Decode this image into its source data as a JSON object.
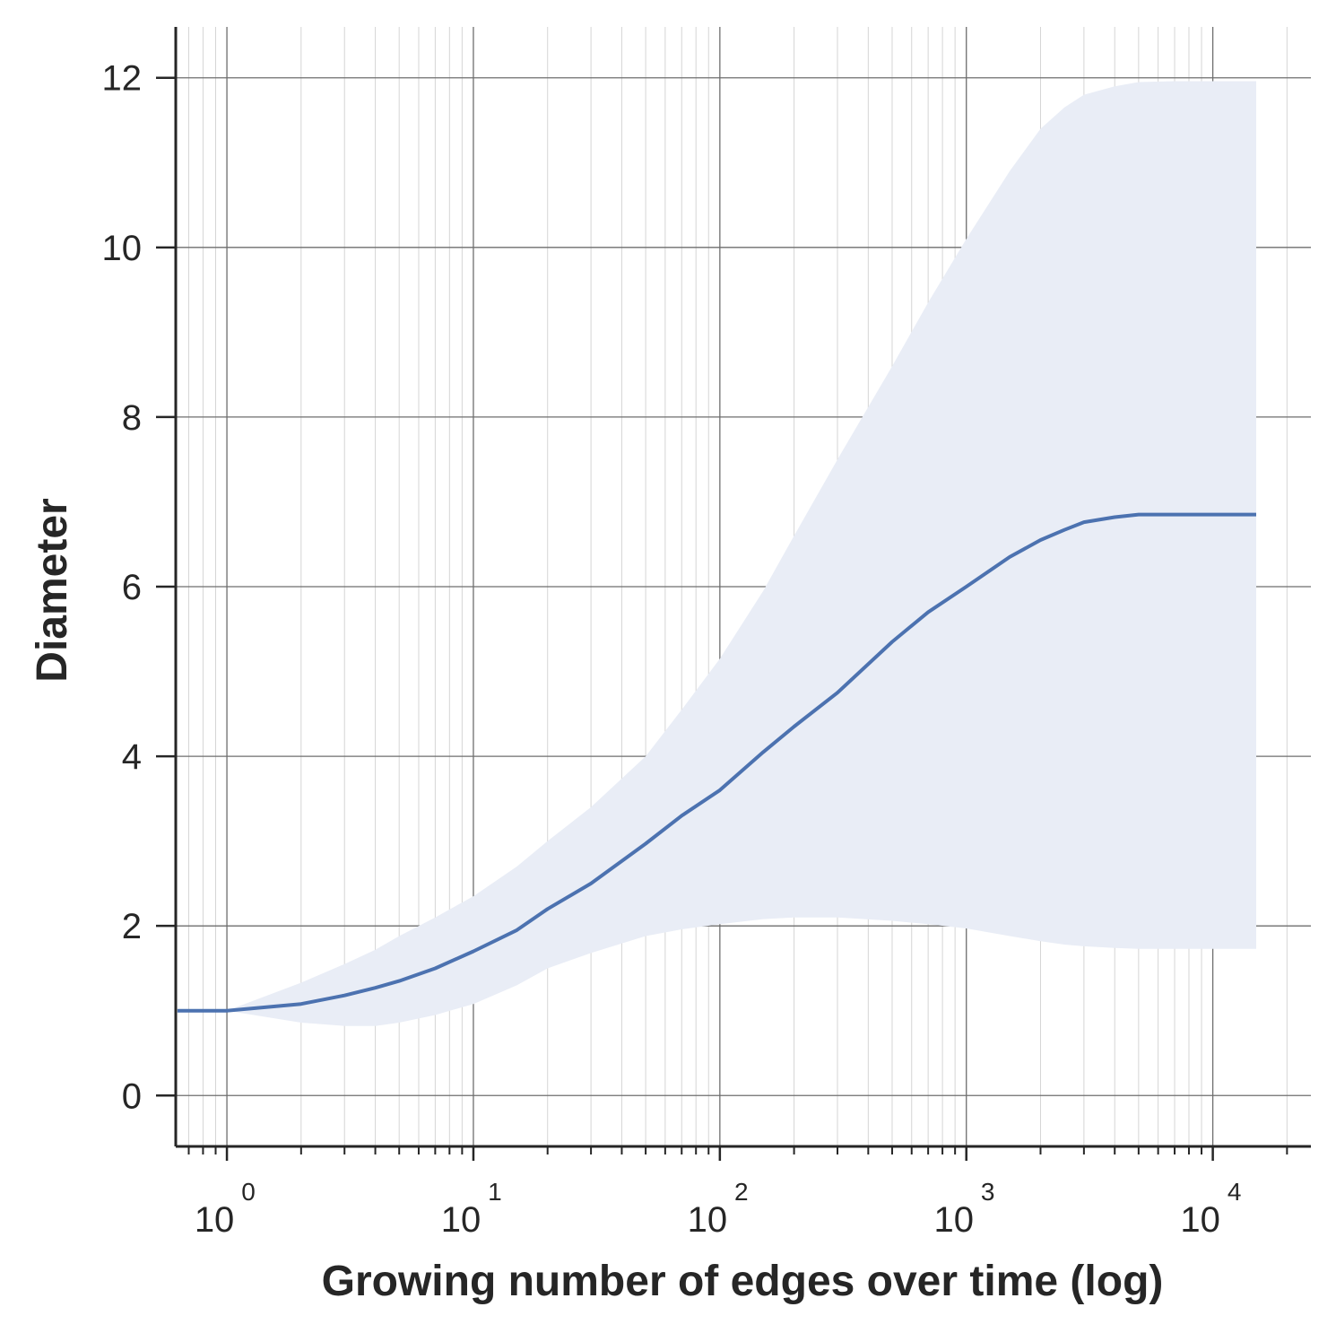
{
  "chart_data": {
    "type": "line",
    "title": "",
    "xlabel": "Growing number of edges over time (log)",
    "ylabel": "Diameter",
    "xscale": "log",
    "xlim": [
      0.62,
      25000
    ],
    "ylim": [
      -0.6,
      12.6
    ],
    "grid": true,
    "legend": "none",
    "x_major_ticks": [
      1,
      10,
      100,
      1000,
      10000
    ],
    "x_tick_labels": [
      {
        "base": "10",
        "exp": "0"
      },
      {
        "base": "10",
        "exp": "1"
      },
      {
        "base": "10",
        "exp": "2"
      },
      {
        "base": "10",
        "exp": "3"
      },
      {
        "base": "10",
        "exp": "4"
      }
    ],
    "y_ticks": [
      0,
      2,
      4,
      6,
      8,
      10,
      12
    ],
    "y_tick_labels": [
      "0",
      "2",
      "4",
      "6",
      "8",
      "10",
      "12"
    ],
    "colors": {
      "line": "#4c72b0",
      "band": "#e9edf6",
      "grid_major": "#6e6e6e",
      "grid_minor": "#d5d5d5",
      "axis": "#262626"
    },
    "series": [
      {
        "x": [
          0.63,
          1,
          2,
          3,
          4,
          5,
          7,
          10,
          15,
          20,
          30,
          50,
          70,
          100,
          150,
          200,
          300,
          500,
          700,
          1000,
          1500,
          2000,
          2500,
          3000,
          4000,
          5000,
          7000,
          10000,
          15000
        ],
        "y": [
          1.0,
          1.0,
          1.08,
          1.18,
          1.27,
          1.35,
          1.5,
          1.7,
          1.95,
          2.2,
          2.5,
          2.97,
          3.3,
          3.6,
          4.05,
          4.35,
          4.75,
          5.35,
          5.7,
          6.0,
          6.35,
          6.55,
          6.67,
          6.76,
          6.82,
          6.85,
          6.85,
          6.85,
          6.85
        ],
        "lower": [
          1.0,
          1.0,
          0.86,
          0.82,
          0.82,
          0.86,
          0.95,
          1.08,
          1.3,
          1.5,
          1.68,
          1.88,
          1.96,
          2.02,
          2.08,
          2.1,
          2.1,
          2.06,
          2.02,
          1.97,
          1.88,
          1.82,
          1.78,
          1.76,
          1.74,
          1.73,
          1.73,
          1.73,
          1.73
        ],
        "upper": [
          1.0,
          1.0,
          1.33,
          1.55,
          1.72,
          1.88,
          2.1,
          2.35,
          2.7,
          3.0,
          3.4,
          4.0,
          4.55,
          5.15,
          5.95,
          6.6,
          7.5,
          8.6,
          9.35,
          10.1,
          10.9,
          11.4,
          11.65,
          11.8,
          11.9,
          11.95,
          11.96,
          11.96,
          11.96
        ]
      }
    ]
  }
}
